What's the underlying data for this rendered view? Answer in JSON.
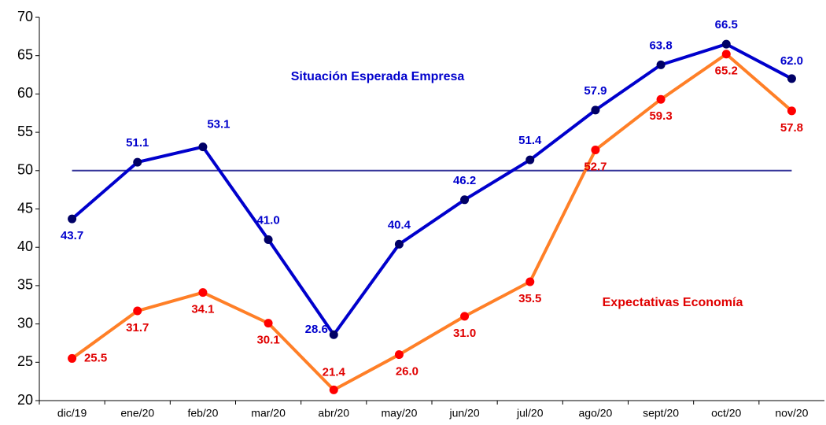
{
  "chart_data": {
    "type": "line",
    "categories": [
      "dic/19",
      "ene/20",
      "feb/20",
      "mar/20",
      "abr/20",
      "may/20",
      "jun/20",
      "jul/20",
      "ago/20",
      "sept/20",
      "oct/20",
      "nov/20"
    ],
    "series": [
      {
        "name": "Situación Esperada Empresa",
        "color": "#0000cc",
        "marker_color": "#000066",
        "label_color": "#0000cc",
        "values": [
          43.7,
          51.1,
          53.1,
          41.0,
          28.6,
          40.4,
          46.2,
          51.4,
          57.9,
          63.8,
          66.5,
          62.0
        ],
        "value_labels": [
          "43.7",
          "51.1",
          "53.1",
          "41.0",
          "28.6",
          "40.4",
          "46.2",
          "51.4",
          "57.9",
          "63.8",
          "66.5",
          "62.0"
        ]
      },
      {
        "name": "Expectativas Economía",
        "color": "#ff7f27",
        "marker_color": "#ff0000",
        "label_color": "#e00000",
        "values": [
          25.5,
          31.7,
          34.1,
          30.1,
          21.4,
          26.0,
          31.0,
          35.5,
          52.7,
          59.3,
          65.2,
          57.8
        ],
        "value_labels": [
          "25.5",
          "31.7",
          "34.1",
          "30.1",
          "21.4",
          "26.0",
          "31.0",
          "35.5",
          "52.7",
          "59.3",
          "65.2",
          "57.8"
        ]
      }
    ],
    "reference_line": 50,
    "ylim": [
      20,
      70
    ],
    "yticks": [
      20,
      25,
      30,
      35,
      40,
      45,
      50,
      55,
      60,
      65,
      70
    ]
  }
}
